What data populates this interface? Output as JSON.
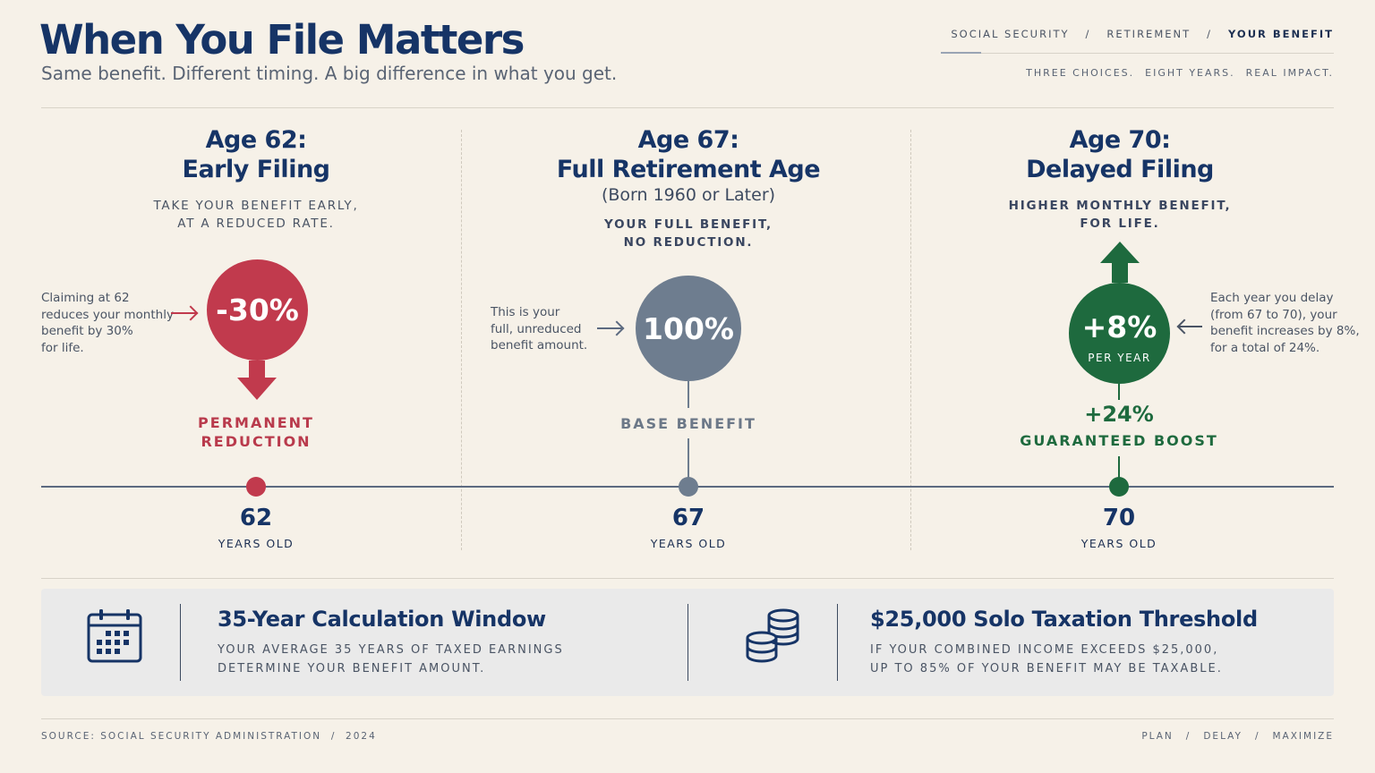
{
  "header": {
    "title": "When You File Matters",
    "subtitle": "Same benefit. Different timing. A big difference in what you get.",
    "breadcrumb": [
      "SOCIAL SECURITY",
      "RETIREMENT",
      "YOUR BENEFIT"
    ],
    "breadcrumb_sep": "/",
    "tagline": [
      "THREE CHOICES.",
      "EIGHT YEARS.",
      "REAL IMPACT."
    ]
  },
  "columns": [
    {
      "title_line1": "Age 62:",
      "title_line2": "Early Filing",
      "desc_line1": "TAKE YOUR BENEFIT EARLY,",
      "desc_line2": "AT A REDUCED RATE.",
      "circle_value": "-30%",
      "note": [
        "Claiming at 62",
        "reduces your monthly",
        "benefit by 30%",
        "for life."
      ],
      "label_line1": "PERMANENT",
      "label_line2": "REDUCTION",
      "age": "62",
      "age_label": "YEARS OLD",
      "color": "#c13a4d"
    },
    {
      "title_line1": "Age 67:",
      "title_line2": "Full Retirement Age",
      "born": "(Born 1960 or Later)",
      "desc_line1": "YOUR FULL BENEFIT,",
      "desc_line2": "NO REDUCTION.",
      "circle_value": "100%",
      "note": [
        "This is your",
        "full, unreduced",
        "benefit amount."
      ],
      "label_line1": "BASE BENEFIT",
      "age": "67",
      "age_label": "YEARS OLD",
      "color": "#6e7d8f"
    },
    {
      "title_line1": "Age 70:",
      "title_line2": "Delayed Filing",
      "desc_line1": "HIGHER MONTHLY BENEFIT,",
      "desc_line2": "FOR LIFE.",
      "circle_value": "+8%",
      "circle_sub": "PER YEAR",
      "note": [
        "Each year you delay",
        "(from 67 to 70), your",
        "benefit increases by 8%,",
        "for a total of 24%."
      ],
      "label_big": "+24%",
      "label_line1": "GUARANTEED BOOST",
      "age": "70",
      "age_label": "YEARS OLD",
      "color": "#1e6a3e"
    }
  ],
  "info": [
    {
      "icon": "calendar-icon",
      "title": "35-Year Calculation Window",
      "text_line1": "YOUR AVERAGE 35 YEARS OF TAXED EARNINGS",
      "text_line2": "DETERMINE YOUR BENEFIT AMOUNT."
    },
    {
      "icon": "coins-icon",
      "title": "$25,000 Solo Taxation Threshold",
      "text_line1": "IF YOUR COMBINED INCOME EXCEEDS $25,000,",
      "text_line2": "UP TO 85% OF YOUR BENEFIT MAY BE TAXABLE."
    }
  ],
  "footer": {
    "source": "SOURCE: SOCIAL SECURITY ADMINISTRATION  /  2024",
    "right": [
      "PLAN",
      "/",
      "DELAY",
      "/",
      "MAXIMIZE"
    ]
  },
  "colors": {
    "background": "#f6f1e8",
    "navy": "#163466",
    "red": "#c13a4d",
    "gray": "#6e7d8f",
    "green": "#1e6a3e"
  }
}
